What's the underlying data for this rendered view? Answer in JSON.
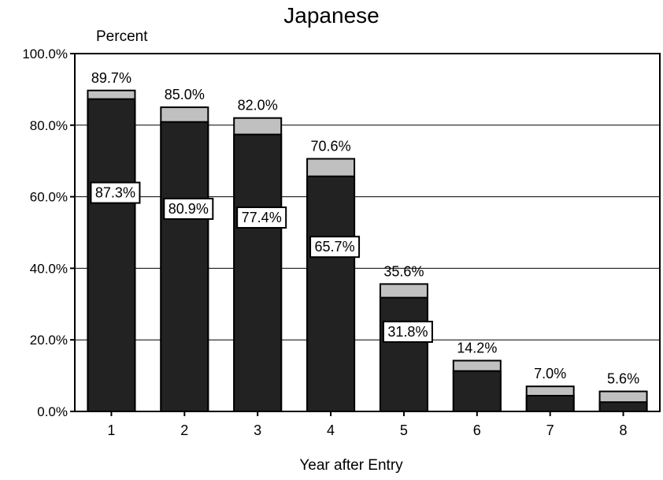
{
  "chart_data": {
    "type": "bar",
    "title": "Japanese",
    "ylabel": "Percent",
    "xlabel": "Year after Entry",
    "categories": [
      "1",
      "2",
      "3",
      "4",
      "5",
      "6",
      "7",
      "8"
    ],
    "ylim": [
      0,
      100
    ],
    "yticks": [
      0,
      20,
      40,
      60,
      80,
      100
    ],
    "ytick_labels": [
      "0.0%",
      "20.0%",
      "40.0%",
      "60.0%",
      "80.0%",
      "100.0%"
    ],
    "grid": "horizontal",
    "stacked_overlay": true,
    "series": [
      {
        "values": [
          87.3,
          80.9,
          77.4,
          65.7,
          31.8,
          11.3,
          4.4,
          2.6
        ],
        "value_labels": [
          "87.3%",
          "80.9%",
          "77.4%",
          "65.7%",
          "31.8%",
          "",
          "",
          ""
        ],
        "color": "#222222"
      },
      {
        "values": [
          89.7,
          85.0,
          82.0,
          70.6,
          35.6,
          14.2,
          7.0,
          5.6
        ],
        "value_labels": [
          "89.7%",
          "85.0%",
          "82.0%",
          "70.6%",
          "35.6%",
          "14.2%",
          "7.0%",
          "5.6%"
        ],
        "color": "#c0c0c0"
      }
    ]
  }
}
